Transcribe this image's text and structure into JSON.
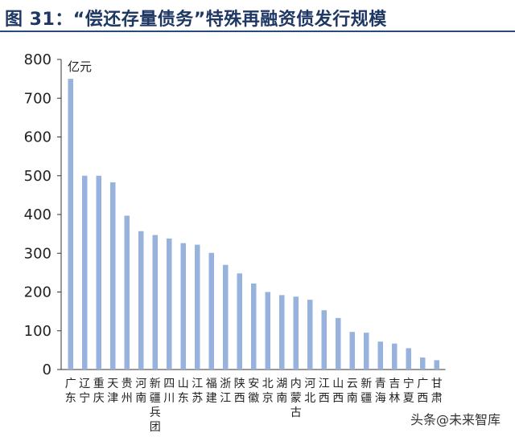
{
  "header": {
    "title": "图 31：“偿还存量债务”特殊再融资债发行规模"
  },
  "watermark": "头条@未来智库",
  "colors": {
    "bar": "#98b2de",
    "axis": "#333333",
    "title": "#1f3863"
  },
  "chart_data": {
    "type": "bar",
    "title": "",
    "unit": "亿元",
    "ylim": [
      0,
      800
    ],
    "yticks": [
      0,
      100,
      200,
      300,
      400,
      500,
      600,
      700,
      800
    ],
    "grid": false,
    "categories": [
      "广东",
      "辽宁",
      "重庆",
      "天津",
      "贵州",
      "河南",
      "新疆兵团",
      "四川",
      "山东",
      "江苏",
      "福建",
      "浙江",
      "陕西",
      "安徽",
      "北京",
      "湖南",
      "内蒙古",
      "河北",
      "江西",
      "山西",
      "云南",
      "新疆",
      "青海",
      "吉林",
      "宁夏",
      "广西",
      "甘肃"
    ],
    "values": [
      750,
      500,
      500,
      483,
      397,
      357,
      347,
      338,
      326,
      322,
      301,
      270,
      248,
      222,
      200,
      192,
      188,
      180,
      153,
      133,
      97,
      95,
      72,
      67,
      55,
      31,
      24
    ]
  }
}
